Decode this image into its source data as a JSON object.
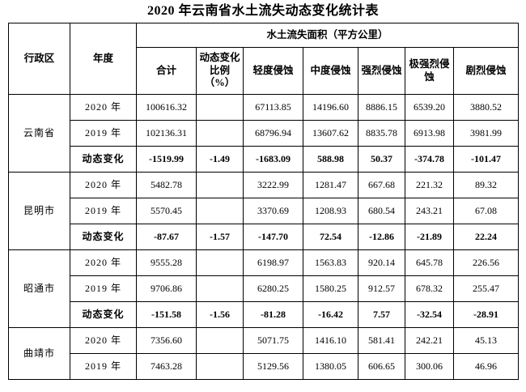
{
  "title": "2020 年云南省水土流失动态变化统计表",
  "table": {
    "header": {
      "region": "行政区",
      "year": "年度",
      "area_group": "水土流失面积（平方公里）",
      "columns": [
        "合计",
        "动态变化比例（%）",
        "轻度侵蚀",
        "中度侵蚀",
        "强烈侵蚀",
        "极强烈侵蚀",
        "剧烈侵蚀"
      ]
    },
    "sections": [
      {
        "region": "云南省",
        "rows": [
          {
            "label": "2020 年",
            "bold": false,
            "values": [
              "100616.32",
              "",
              "67113.85",
              "14196.60",
              "8886.15",
              "6539.20",
              "3880.52"
            ]
          },
          {
            "label": "2019 年",
            "bold": false,
            "values": [
              "102136.31",
              "",
              "68796.94",
              "13607.62",
              "8835.78",
              "6913.98",
              "3981.99"
            ]
          },
          {
            "label": "动态变化",
            "bold": true,
            "values": [
              "-1519.99",
              "-1.49",
              "-1683.09",
              "588.98",
              "50.37",
              "-374.78",
              "-101.47"
            ]
          }
        ]
      },
      {
        "region": "昆明市",
        "rows": [
          {
            "label": "2020 年",
            "bold": false,
            "values": [
              "5482.78",
              "",
              "3222.99",
              "1281.47",
              "667.68",
              "221.32",
              "89.32"
            ]
          },
          {
            "label": "2019 年",
            "bold": false,
            "values": [
              "5570.45",
              "",
              "3370.69",
              "1208.93",
              "680.54",
              "243.21",
              "67.08"
            ]
          },
          {
            "label": "动态变化",
            "bold": true,
            "values": [
              "-87.67",
              "-1.57",
              "-147.70",
              "72.54",
              "-12.86",
              "-21.89",
              "22.24"
            ]
          }
        ]
      },
      {
        "region": "昭通市",
        "rows": [
          {
            "label": "2020 年",
            "bold": false,
            "values": [
              "9555.28",
              "",
              "6198.97",
              "1563.83",
              "920.14",
              "645.78",
              "226.56"
            ]
          },
          {
            "label": "2019 年",
            "bold": false,
            "values": [
              "9706.86",
              "",
              "6280.25",
              "1580.25",
              "912.57",
              "678.32",
              "255.47"
            ]
          },
          {
            "label": "动态变化",
            "bold": true,
            "values": [
              "-151.58",
              "-1.56",
              "-81.28",
              "-16.42",
              "7.57",
              "-32.54",
              "-28.91"
            ]
          }
        ]
      },
      {
        "region": "曲靖市",
        "rows": [
          {
            "label": "2020 年",
            "bold": false,
            "values": [
              "7356.60",
              "",
              "5071.75",
              "1416.10",
              "581.41",
              "242.21",
              "45.13"
            ]
          },
          {
            "label": "2019 年",
            "bold": false,
            "values": [
              "7463.28",
              "",
              "5129.56",
              "1380.05",
              "606.65",
              "300.06",
              "46.96"
            ]
          }
        ]
      }
    ]
  }
}
